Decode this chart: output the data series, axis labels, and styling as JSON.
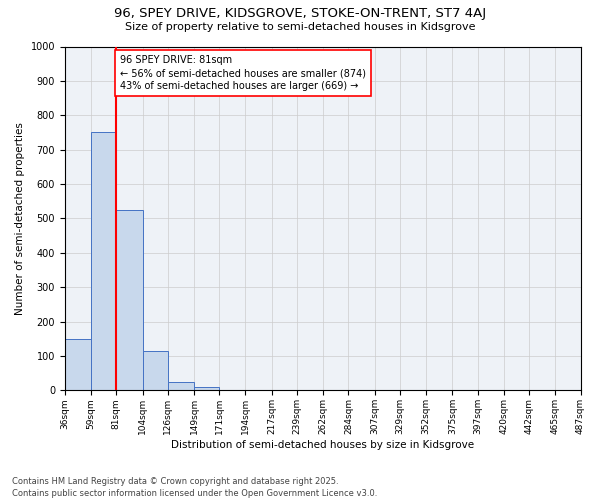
{
  "title1": "96, SPEY DRIVE, KIDSGROVE, STOKE-ON-TRENT, ST7 4AJ",
  "title2": "Size of property relative to semi-detached houses in Kidsgrove",
  "xlabel": "Distribution of semi-detached houses by size in Kidsgrove",
  "ylabel": "Number of semi-detached properties",
  "footnote": "Contains HM Land Registry data © Crown copyright and database right 2025.\nContains public sector information licensed under the Open Government Licence v3.0.",
  "bins": [
    36,
    59,
    81,
    104,
    126,
    149,
    171,
    194,
    217,
    239,
    262,
    284,
    307,
    329,
    352,
    375,
    397,
    420,
    442,
    465,
    487
  ],
  "counts": [
    150,
    750,
    525,
    115,
    25,
    10,
    0,
    0,
    0,
    0,
    0,
    0,
    0,
    0,
    0,
    0,
    0,
    0,
    0,
    0
  ],
  "subject_size": 81,
  "subject_label": "96 SPEY DRIVE: 81sqm",
  "pct_smaller": 56,
  "n_smaller": 874,
  "pct_larger": 43,
  "n_larger": 669,
  "bar_color": "#c8d8ec",
  "bar_edge_color": "#4472c4",
  "vline_color": "red",
  "annotation_box_color": "red",
  "ylim": [
    0,
    1000
  ],
  "yticks": [
    0,
    100,
    200,
    300,
    400,
    500,
    600,
    700,
    800,
    900,
    1000
  ],
  "bg_color": "#eef2f7",
  "grid_color": "#cccccc",
  "title1_fontsize": 9.5,
  "title2_fontsize": 8,
  "xlabel_fontsize": 7.5,
  "ylabel_fontsize": 7.5,
  "xtick_fontsize": 6.5,
  "ytick_fontsize": 7,
  "footnote_fontsize": 6,
  "ann_fontsize": 7
}
